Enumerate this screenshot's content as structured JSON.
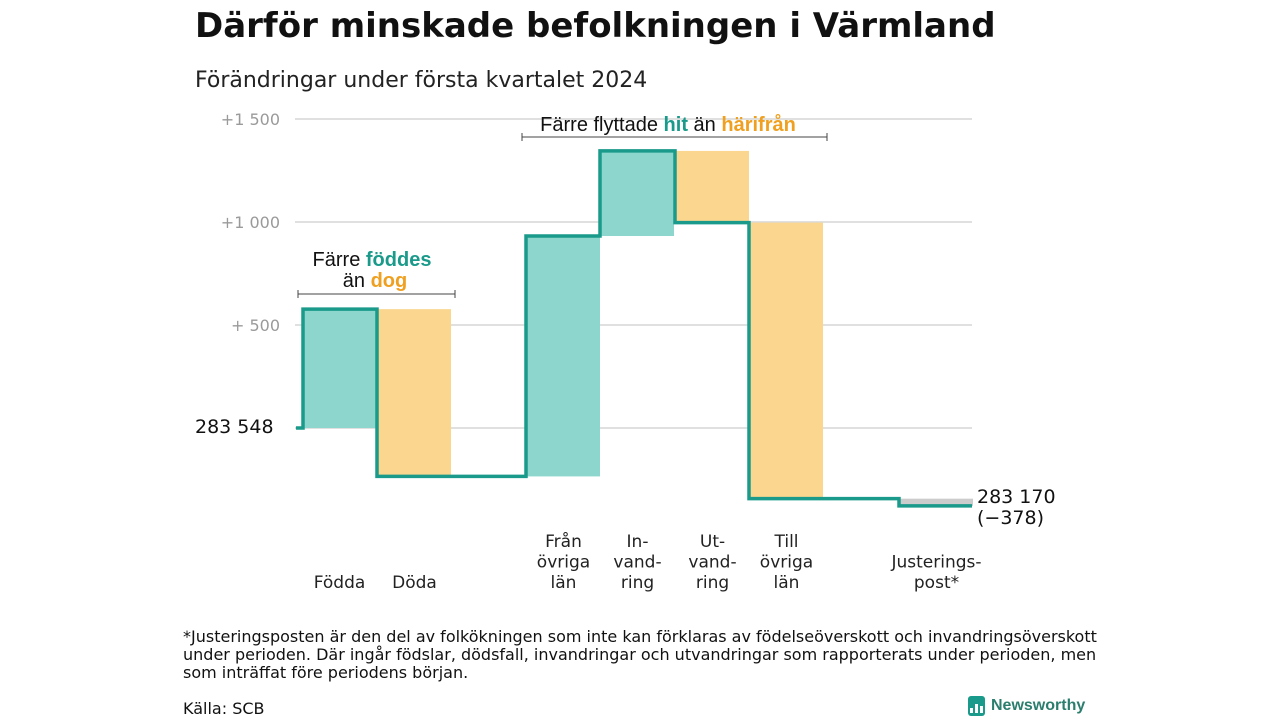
{
  "title": "Därför minskade befolkningen i Värmland",
  "subtitle": "Förändringar under första kvartalet 2024",
  "colors": {
    "inflow": "#8dd6cd",
    "outflow": "#fad68f",
    "line": "#1a9a8a",
    "adjustment": "#cccccc",
    "accent_orange": "#f0a020"
  },
  "chart_data": {
    "type": "bar",
    "subtype": "waterfall",
    "start_value": 283548,
    "start_label": "283  548",
    "end_value": 283170,
    "end_label": "283 170",
    "end_change_label": "(−378)",
    "baseline_offset_range": [
      -250,
      1500
    ],
    "y_ticks": [
      {
        "value": 500,
        "label": "+  500"
      },
      {
        "value": 1000,
        "label": "+1  000"
      },
      {
        "value": 1500,
        "label": "+1  500"
      }
    ],
    "grid": true,
    "steps": [
      {
        "key": "fodda",
        "label_lines": [
          "Födda"
        ],
        "change": 577,
        "kind": "in"
      },
      {
        "key": "doda",
        "label_lines": [
          "Döda"
        ],
        "change": -812,
        "kind": "out"
      },
      {
        "key": "fran_ovriga_lan",
        "label_lines": [
          "Från",
          "övriga",
          "län"
        ],
        "change": 1167,
        "kind": "in"
      },
      {
        "key": "invandring",
        "label_lines": [
          "In-",
          "vand-",
          "ring"
        ],
        "change": 413,
        "kind": "in"
      },
      {
        "key": "utvandring",
        "label_lines": [
          "Ut-",
          "vand-",
          "ring"
        ],
        "change": -348,
        "kind": "out"
      },
      {
        "key": "till_ovriga_lan",
        "label_lines": [
          "Till",
          "övriga",
          "län"
        ],
        "change": -1340,
        "kind": "out"
      },
      {
        "key": "justeringspost",
        "label_lines": [
          "Justerings-",
          "post*"
        ],
        "change": -35,
        "kind": "adj"
      }
    ],
    "annotations": [
      {
        "key": "births",
        "parts": [
          "Färre",
          "föddes",
          "än",
          "dog"
        ]
      },
      {
        "key": "moves",
        "parts": [
          "Färre flyttade",
          "hit",
          "än",
          "härifrån"
        ]
      }
    ]
  },
  "footnote": "*Justeringsposten är den del av folkökningen som inte kan förklaras av födelseöverskott och invandringsöverskott under perioden. Där ingår födslar, dödsfall, invandringar och utvandringar som rapporterats under perioden, men som inträffat före periodens början.",
  "source": "Källa: SCB",
  "brand": "Newsworthy"
}
